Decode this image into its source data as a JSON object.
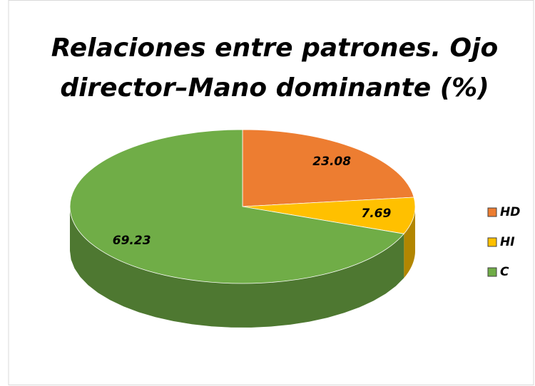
{
  "chart_data": {
    "type": "pie",
    "title": "Relaciones entre patrones. Ojo director–Mano dominante (%)",
    "categories": [
      "HD",
      "HI",
      "C"
    ],
    "values": [
      23.08,
      7.69,
      69.23
    ],
    "colors": [
      "#ed7d31",
      "#ffc000",
      "#70ad47"
    ],
    "legend": "right"
  }
}
